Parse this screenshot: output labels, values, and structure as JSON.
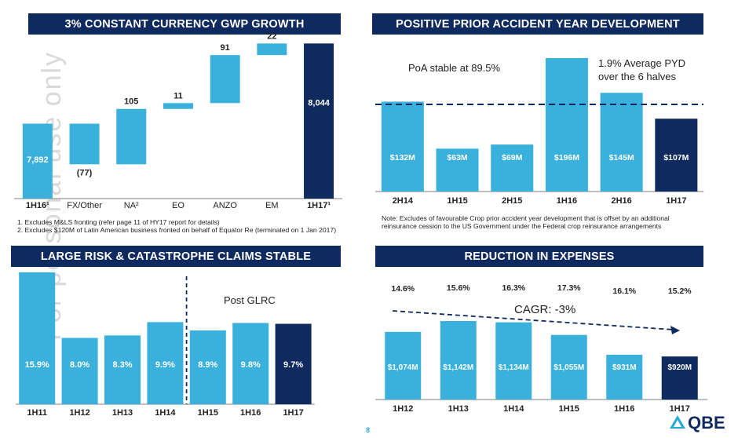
{
  "watermark": "For personal use only",
  "page_number": "8",
  "logo_text": "QBE",
  "colors": {
    "accent": "#3ab0dc",
    "navy": "#0f2a5f",
    "axis": "#7f7f7f"
  },
  "chart_data": [
    {
      "id": "gwp",
      "type": "waterfall",
      "title": "3% CONSTANT CURRENCY GWP GROWTH",
      "categories": [
        "1H16¹",
        "FX/Other",
        "NA²",
        "EO",
        "ANZO",
        "EM",
        "1H17¹"
      ],
      "values": [
        7892,
        -77,
        105,
        11,
        91,
        22,
        8044
      ],
      "labels": [
        "7,892",
        "(77)",
        "105",
        "11",
        "91",
        "22",
        "8,044"
      ],
      "total_flags": [
        true,
        false,
        false,
        false,
        false,
        false,
        true
      ],
      "footnotes": [
        "1. Excludes M&LS fronting (refer page 11 of HY17 report for details)",
        "2. Excludes $120M of Latin American business fronted on behalf of Equator Re (terminated on 1 Jan 2017)"
      ]
    },
    {
      "id": "pyd",
      "type": "bar",
      "title": "POSITIVE PRIOR ACCIDENT YEAR DEVELOPMENT",
      "categories": [
        "2H14",
        "1H15",
        "2H15",
        "1H16",
        "2H16",
        "1H17"
      ],
      "values": [
        132,
        63,
        69,
        196,
        145,
        107
      ],
      "labels": [
        "$132M",
        "$63M",
        "$69M",
        "$196M",
        "$145M",
        "$107M"
      ],
      "reference_line_value": 128,
      "annotations": [
        "PoA stable at 89.5%",
        "1.9% Average PYD",
        "over the 6 halves"
      ],
      "note": "Note: Excludes of favourable Crop prior accident year development that is offset by an additional reinsurance cession to the US Government under the Federal crop reinsurance arrangements"
    },
    {
      "id": "large",
      "type": "bar",
      "title": "LARGE RISK & CATASTROPHE CLAIMS STABLE",
      "categories": [
        "1H11",
        "1H12",
        "1H13",
        "1H14",
        "1H15",
        "1H16",
        "1H17"
      ],
      "values": [
        15.9,
        8.0,
        8.3,
        9.9,
        8.9,
        9.8,
        9.7
      ],
      "labels": [
        "15.9%",
        "8.0%",
        "8.3%",
        "9.9%",
        "8.9%",
        "9.8%",
        "9.7%"
      ],
      "divider_after_index": 3,
      "annotation": "Post GLRC"
    },
    {
      "id": "exp",
      "type": "bar",
      "title": "REDUCTION IN EXPENSES",
      "categories": [
        "1H12",
        "1H13",
        "1H14",
        "1H15",
        "1H16",
        "1H17"
      ],
      "values": [
        1074,
        1142,
        1134,
        1055,
        931,
        920
      ],
      "labels": [
        "$1,074M",
        "$1,142M",
        "$1,134M",
        "$1,055M",
        "$931M",
        "$920M"
      ],
      "ratios": [
        "14.6%",
        "15.6%",
        "16.3%",
        "17.3%",
        "16.1%",
        "15.2%"
      ],
      "trend_label": "CAGR: -3%"
    }
  ]
}
